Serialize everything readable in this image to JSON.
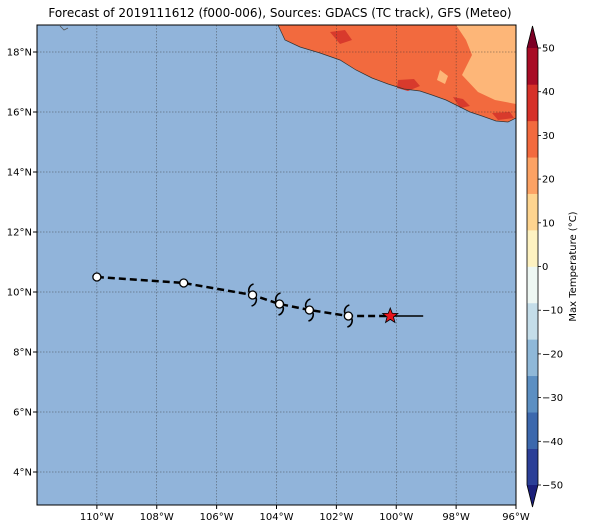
{
  "title": "Forecast of 2019111612 (f000-006), Sources: GDACS (TC track), GFS (Meteo)",
  "map": {
    "lon_range": [
      -112,
      -96
    ],
    "lat_range": [
      2.9,
      18.9
    ],
    "lon_ticks": [
      -110,
      -108,
      -106,
      -104,
      -102,
      -100,
      -98,
      -96
    ],
    "lat_ticks": [
      4,
      6,
      8,
      10,
      12,
      14,
      16,
      18
    ],
    "lon_tick_labels": [
      "110°W",
      "108°W",
      "106°W",
      "104°W",
      "102°W",
      "100°W",
      "98°W",
      "96°W"
    ],
    "lat_tick_labels": [
      "4°N",
      "6°N",
      "8°N",
      "10°N",
      "12°N",
      "14°N",
      "16°N",
      "18°N"
    ],
    "grid": true,
    "ocean_color": "#91b4da"
  },
  "track": {
    "past_points": [
      [
        -110.0,
        10.5
      ],
      [
        -107.1,
        10.3
      ],
      [
        -104.8,
        9.9
      ],
      [
        -103.9,
        9.6
      ],
      [
        -102.9,
        9.4
      ],
      [
        -101.6,
        9.2
      ]
    ],
    "storm_symbols": [
      [
        -104.8,
        9.9
      ],
      [
        -103.9,
        9.6
      ],
      [
        -102.9,
        9.4
      ],
      [
        -101.6,
        9.2
      ]
    ],
    "current": [
      -100.2,
      9.2
    ],
    "forecast_line": [
      [
        -100.2,
        9.2
      ],
      [
        -99.1,
        9.2
      ]
    ]
  },
  "colorbar": {
    "label": "Max Temperature (°C)",
    "ticks": [
      50,
      40,
      30,
      20,
      10,
      0,
      -10,
      -20,
      -30,
      -40,
      -50
    ],
    "min": -50,
    "max": 50,
    "colors": [
      "#1b1f7a",
      "#2b3f97",
      "#3c68ad",
      "#5c8fc2",
      "#8fb8d8",
      "#c4dde9",
      "#eef7f3",
      "#fef2c1",
      "#fed48f",
      "#fca264",
      "#f26a3e",
      "#d63129",
      "#a80c26",
      "#7c0025"
    ]
  },
  "land_colors": {
    "hot": "#f26a3e",
    "warm": "#fdb678",
    "hotter": "#d83a2c"
  }
}
